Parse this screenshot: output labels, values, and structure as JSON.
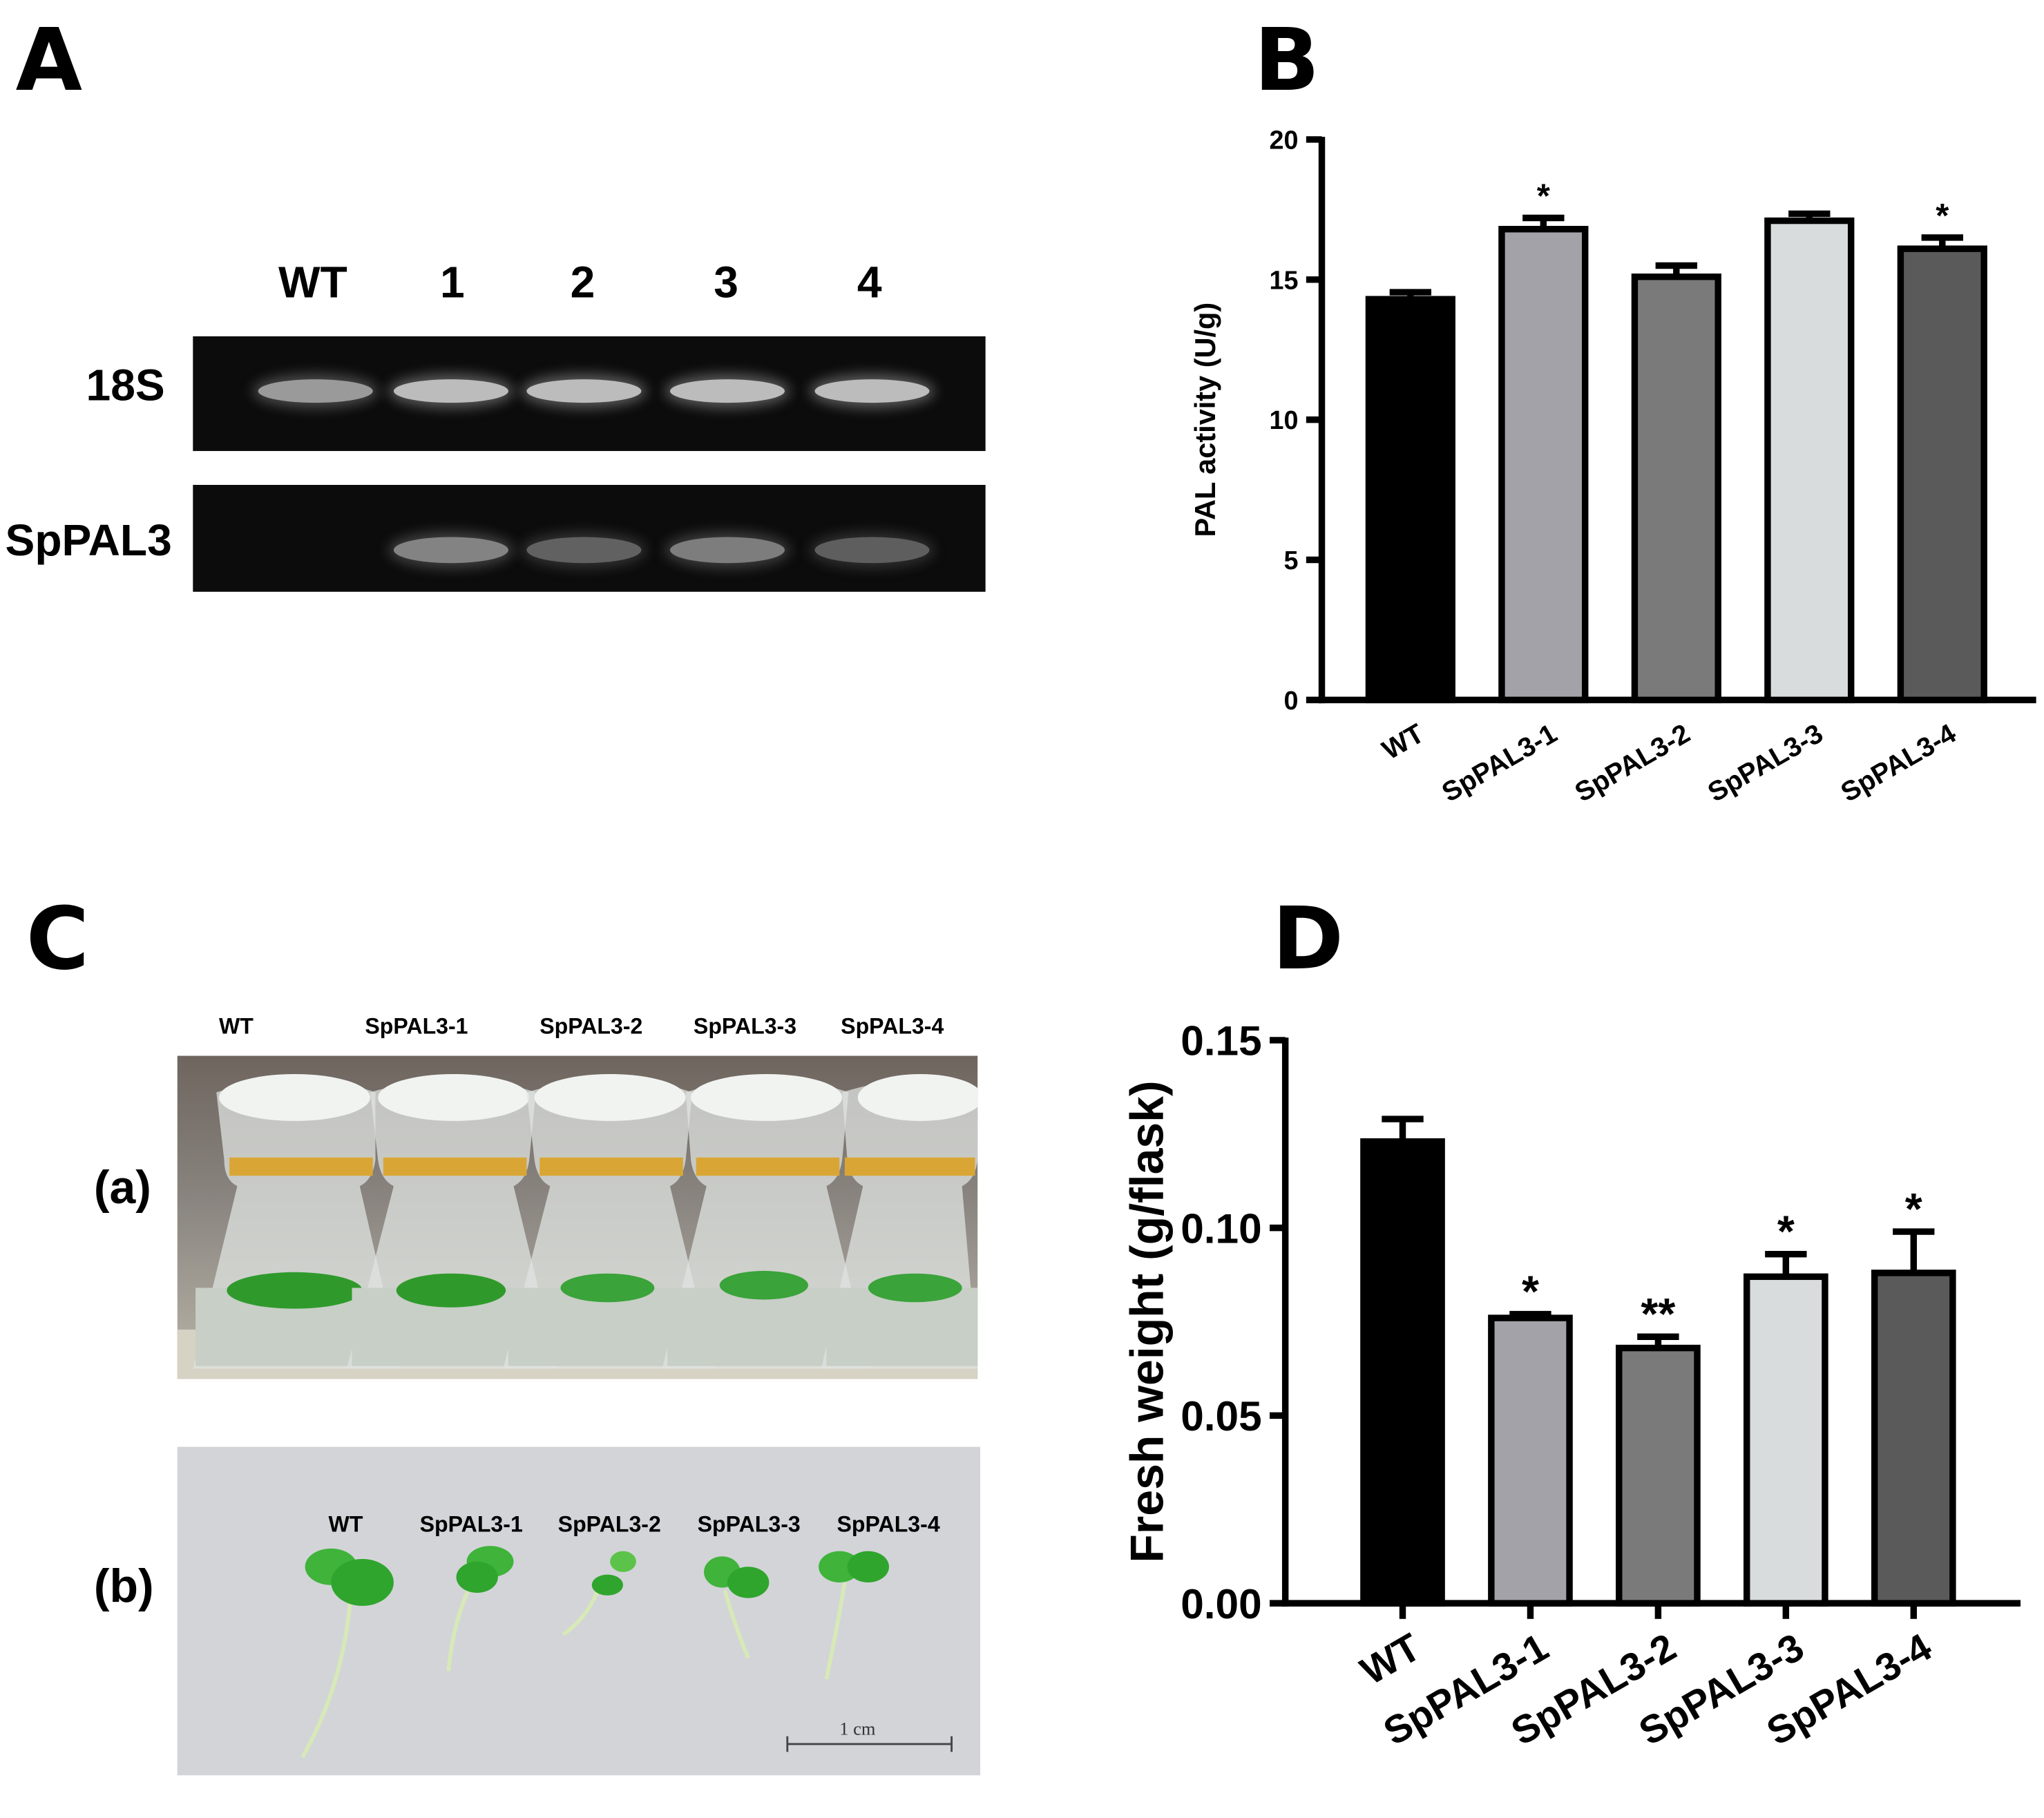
{
  "panels": {
    "A": "A",
    "B": "B",
    "C": "C",
    "D": "D"
  },
  "gel": {
    "lanes": [
      "WT",
      "1",
      "2",
      "3",
      "4"
    ],
    "rows": [
      "18S",
      "SpPAL3"
    ],
    "band_intensity_18S": [
      0.55,
      0.75,
      0.75,
      0.75,
      0.75
    ],
    "band_intensity_SpPAL3": [
      0.0,
      0.42,
      0.22,
      0.38,
      0.2
    ]
  },
  "photo": {
    "flask_labels": [
      "WT",
      "SpPAL3-1",
      "SpPAL3-2",
      "SpPAL3-3",
      "SpPAL3-4"
    ],
    "seedling_labels": [
      "WT",
      "SpPAL3-1",
      "SpPAL3-2",
      "SpPAL3-3",
      "SpPAL3-4"
    ],
    "sub_a": "(a)",
    "sub_b": "(b)",
    "scale_bar": "1 cm"
  },
  "chart_data": [
    {
      "panel": "B",
      "type": "bar",
      "categories": [
        "WT",
        "SpPAL3-1",
        "SpPAL3-2",
        "SpPAL3-3",
        "SpPAL3-4"
      ],
      "values": [
        14.3,
        16.8,
        15.1,
        17.1,
        16.1
      ],
      "errors": [
        0.25,
        0.4,
        0.4,
        0.25,
        0.4
      ],
      "significance": [
        "",
        "*",
        "",
        "",
        "*"
      ],
      "colors": [
        "#000000",
        "#a2a2a8",
        "#7a7a7a",
        "#d9dcdc",
        "#5a5a5a"
      ],
      "ylabel": "PAL activity (U/g)",
      "ylim": [
        0,
        20
      ],
      "yticks": [
        0,
        5,
        10,
        15,
        20
      ]
    },
    {
      "panel": "D",
      "type": "bar",
      "categories": [
        "WT",
        "SpPAL3-1",
        "SpPAL3-2",
        "SpPAL3-3",
        "SpPAL3-4"
      ],
      "values": [
        0.123,
        0.076,
        0.068,
        0.087,
        0.088
      ],
      "errors": [
        0.006,
        0.001,
        0.003,
        0.006,
        0.011
      ],
      "significance": [
        "",
        "*",
        "**",
        "*",
        "*"
      ],
      "colors": [
        "#000000",
        "#a2a2a8",
        "#7a7a7a",
        "#d9dcdc",
        "#5a5a5a"
      ],
      "ylabel": "Fresh weight (g/flask)",
      "ylim": [
        0,
        0.15
      ],
      "yticks": [
        "0.00",
        "0.05",
        "0.10",
        "0.15"
      ]
    }
  ]
}
